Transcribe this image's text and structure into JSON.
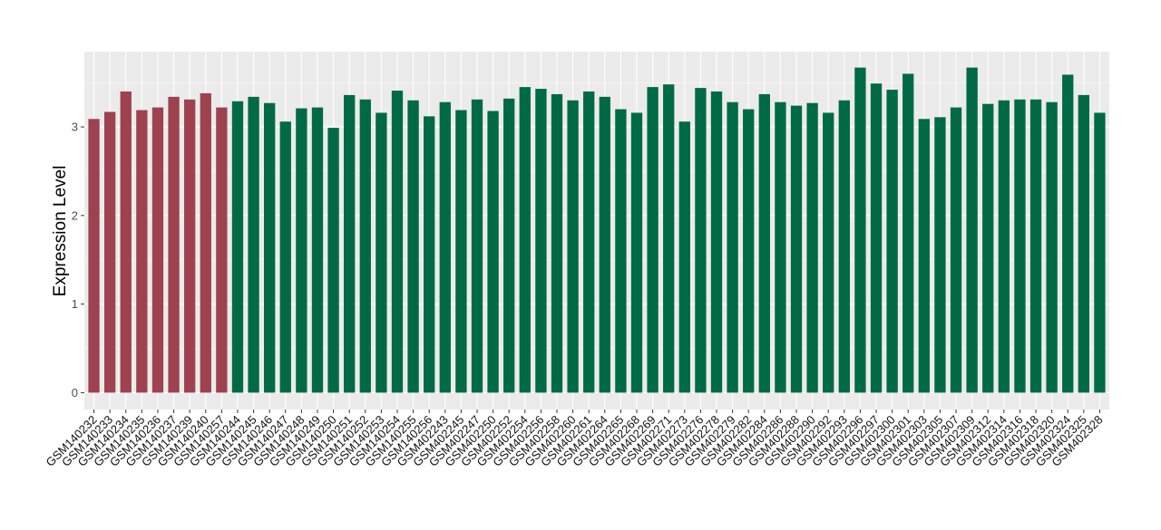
{
  "chart_data": {
    "type": "bar",
    "title": "",
    "xlabel": "",
    "ylabel": "Expression Level",
    "ylim": [
      -0.19,
      3.85
    ],
    "yticks": [
      0,
      1,
      2,
      3
    ],
    "grid": true,
    "legend": "none",
    "colors": {
      "group1": "#9e4250",
      "group2": "#006a45",
      "panel": "#ebebeb",
      "grid": "#ffffff"
    },
    "categories": [
      "GSM140232",
      "GSM140233",
      "GSM140234",
      "GSM140235",
      "GSM140236",
      "GSM140237",
      "GSM140239",
      "GSM140240",
      "GSM140257",
      "GSM140244",
      "GSM140245",
      "GSM140246",
      "GSM140247",
      "GSM140248",
      "GSM140249",
      "GSM140250",
      "GSM140251",
      "GSM140252",
      "GSM140253",
      "GSM140254",
      "GSM140255",
      "GSM140256",
      "GSM402243",
      "GSM402245",
      "GSM402247",
      "GSM402250",
      "GSM402252",
      "GSM402254",
      "GSM402256",
      "GSM402258",
      "GSM402260",
      "GSM402261",
      "GSM402264",
      "GSM402265",
      "GSM402268",
      "GSM402269",
      "GSM402271",
      "GSM402273",
      "GSM402276",
      "GSM402278",
      "GSM402279",
      "GSM402282",
      "GSM402284",
      "GSM402286",
      "GSM402288",
      "GSM402290",
      "GSM402292",
      "GSM402293",
      "GSM402296",
      "GSM402297",
      "GSM402300",
      "GSM402301",
      "GSM402303",
      "GSM402305",
      "GSM402307",
      "GSM402309",
      "GSM402312",
      "GSM402314",
      "GSM402316",
      "GSM402318",
      "GSM402320",
      "GSM402324",
      "GSM402325",
      "GSM402328"
    ],
    "values": [
      3.09,
      3.17,
      3.4,
      3.19,
      3.22,
      3.34,
      3.31,
      3.38,
      3.22,
      3.29,
      3.34,
      3.27,
      3.06,
      3.21,
      3.22,
      2.99,
      3.36,
      3.31,
      3.16,
      3.41,
      3.3,
      3.12,
      3.28,
      3.19,
      3.31,
      3.18,
      3.32,
      3.45,
      3.43,
      3.37,
      3.3,
      3.4,
      3.34,
      3.2,
      3.16,
      3.45,
      3.48,
      3.06,
      3.44,
      3.4,
      3.28,
      3.2,
      3.37,
      3.28,
      3.24,
      3.27,
      3.16,
      3.3,
      3.67,
      3.49,
      3.42,
      3.6,
      3.09,
      3.11,
      3.22,
      3.67,
      3.26,
      3.3,
      3.31,
      3.31,
      3.28,
      3.59,
      3.36,
      3.16
    ],
    "groups": [
      "group1",
      "group1",
      "group1",
      "group1",
      "group1",
      "group1",
      "group1",
      "group1",
      "group1",
      "group2",
      "group2",
      "group2",
      "group2",
      "group2",
      "group2",
      "group2",
      "group2",
      "group2",
      "group2",
      "group2",
      "group2",
      "group2",
      "group2",
      "group2",
      "group2",
      "group2",
      "group2",
      "group2",
      "group2",
      "group2",
      "group2",
      "group2",
      "group2",
      "group2",
      "group2",
      "group2",
      "group2",
      "group2",
      "group2",
      "group2",
      "group2",
      "group2",
      "group2",
      "group2",
      "group2",
      "group2",
      "group2",
      "group2",
      "group2",
      "group2",
      "group2",
      "group2",
      "group2",
      "group2",
      "group2",
      "group2",
      "group2",
      "group2",
      "group2",
      "group2",
      "group2",
      "group2",
      "group2",
      "group2"
    ]
  }
}
